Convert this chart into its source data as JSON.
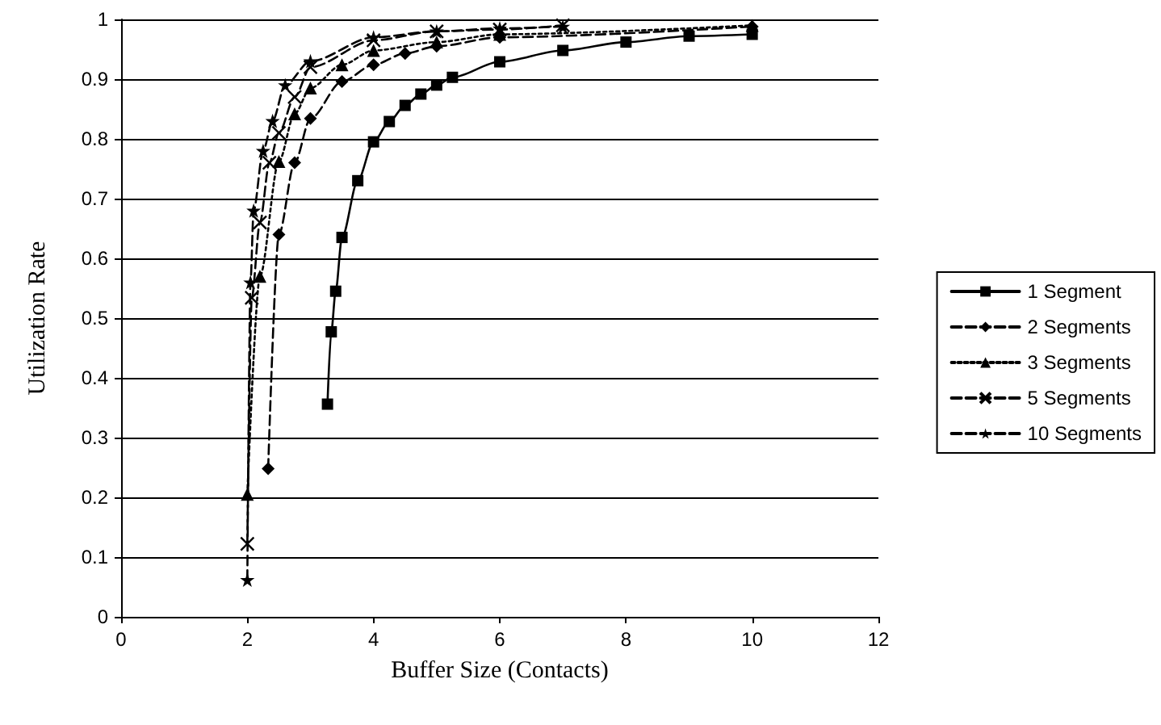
{
  "chart_data": {
    "type": "line",
    "xlabel": "Buffer Size (Contacts)",
    "ylabel": "Utilization Rate",
    "xlim": [
      0,
      12
    ],
    "xticks": [
      0,
      2,
      4,
      6,
      8,
      10,
      12
    ],
    "ylim": [
      0,
      1
    ],
    "yticks": [
      0,
      0.1,
      0.2,
      0.3,
      0.4,
      0.5,
      0.6,
      0.7,
      0.8,
      0.9,
      1
    ],
    "grid": "y",
    "legend": "right",
    "series": [
      {
        "name": "1 Segment",
        "color": "#000000",
        "marker": "square",
        "line_style": "solid",
        "x": [
          3.27,
          3.33,
          3.4,
          3.5,
          3.75,
          4,
          4.25,
          4.5,
          4.75,
          5,
          5.25,
          6,
          7,
          8,
          9,
          10
        ],
        "values": [
          0.356,
          0.477,
          0.545,
          0.635,
          0.73,
          0.795,
          0.829,
          0.856,
          0.875,
          0.89,
          0.903,
          0.929,
          0.948,
          0.962,
          0.972,
          0.975
        ]
      },
      {
        "name": "2 Segments",
        "color": "#000000",
        "marker": "diamond",
        "line_style": "dashed",
        "x": [
          2.33,
          2.5,
          2.75,
          3,
          3.5,
          4,
          4.5,
          5,
          6,
          10
        ],
        "values": [
          0.248,
          0.64,
          0.76,
          0.834,
          0.896,
          0.924,
          0.943,
          0.955,
          0.97,
          0.988
        ]
      },
      {
        "name": "3 Segments",
        "color": "#000000",
        "marker": "triangle",
        "line_style": "dotted",
        "x": [
          2,
          2.2,
          2.5,
          2.75,
          3,
          3.5,
          4,
          5,
          6,
          10
        ],
        "values": [
          0.205,
          0.57,
          0.762,
          0.842,
          0.885,
          0.924,
          0.948,
          0.962,
          0.975,
          0.99
        ]
      },
      {
        "name": "5 Segments",
        "color": "#000000",
        "marker": "cross",
        "line_style": "dashed",
        "x": [
          2,
          2.07,
          2.2,
          2.35,
          2.5,
          2.75,
          3,
          4,
          5,
          6,
          7
        ],
        "values": [
          0.122,
          0.534,
          0.66,
          0.76,
          0.81,
          0.87,
          0.92,
          0.965,
          0.98,
          0.983,
          0.99
        ]
      },
      {
        "name": "10 Segments",
        "color": "#000000",
        "marker": "star",
        "line_style": "dashed",
        "x": [
          2,
          2.05,
          2.1,
          2.25,
          2.4,
          2.6,
          3,
          4,
          5,
          6,
          7
        ],
        "values": [
          0.062,
          0.56,
          0.68,
          0.78,
          0.83,
          0.89,
          0.93,
          0.97,
          0.98,
          0.985,
          0.988
        ]
      }
    ]
  }
}
